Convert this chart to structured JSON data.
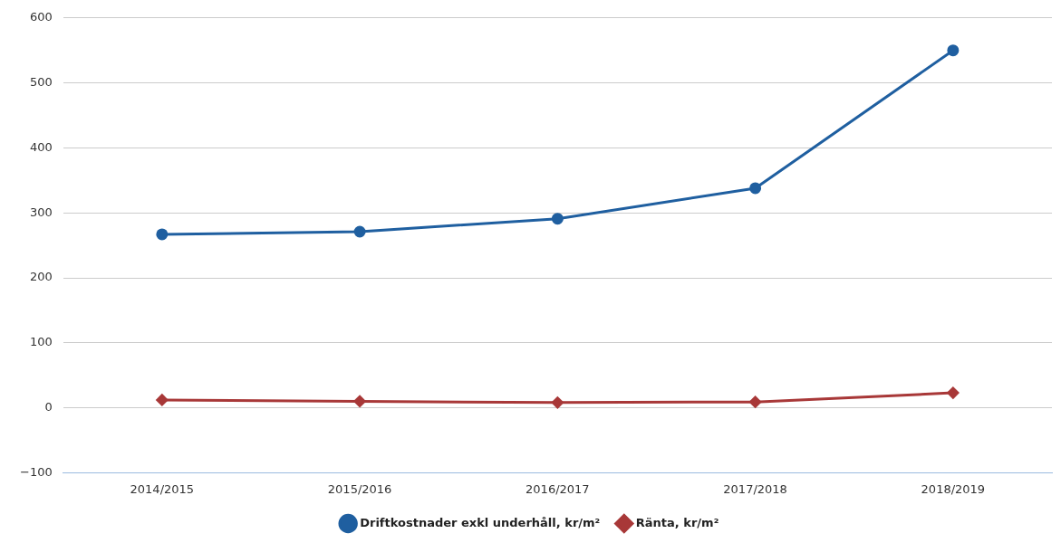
{
  "chart_data": {
    "type": "line",
    "categories": [
      "2014/2015",
      "2015/2016",
      "2016/2017",
      "2017/2018",
      "2018/2019"
    ],
    "series": [
      {
        "name": "Driftkostnader exkl underhåll, kr/m²",
        "color": "#1f5fa0",
        "marker": "circle",
        "values": [
          267,
          271,
          291,
          338,
          550
        ]
      },
      {
        "name": "Ränta, kr/m²",
        "color": "#a83838",
        "marker": "diamond",
        "values": [
          12,
          10,
          8,
          9,
          23
        ]
      }
    ],
    "ylim": [
      -100,
      600
    ],
    "yticks": [
      -100,
      0,
      100,
      200,
      300,
      400,
      500,
      600
    ],
    "grid": "y",
    "legend": "bottom",
    "line_style": "solid"
  }
}
